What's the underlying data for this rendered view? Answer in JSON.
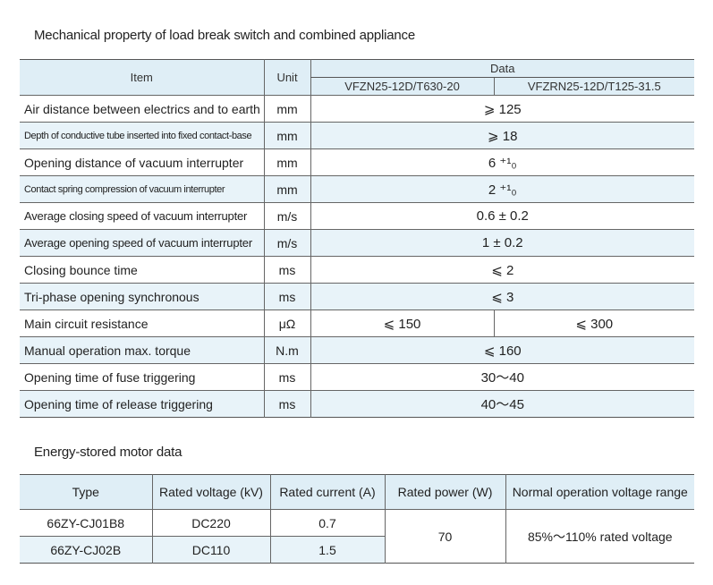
{
  "title": "Mechanical property of load break switch and combined appliance",
  "mech_table": {
    "headers": {
      "item": "Item",
      "unit": "Unit",
      "data": "Data",
      "model1": "VFZN25-12D/T630-20",
      "model2": "VFZRN25-12D/T125-31.5"
    },
    "rows": [
      {
        "item": "Air distance between electrics and to earth",
        "unit": "mm",
        "value": "⩾ 125"
      },
      {
        "item": "Depth of conductive tube inserted into fixed contact-base",
        "unit": "mm",
        "value": "⩾ 18"
      },
      {
        "item": "Opening distance of vacuum interrupter",
        "unit": "mm",
        "value": "6 ⁺¹₀"
      },
      {
        "item": "Contact spring compression of vacuum interrupter",
        "unit": "mm",
        "value": "2 ⁺¹₀"
      },
      {
        "item": "Average closing speed of vacuum interrupter",
        "unit": "m/s",
        "value": "0.6 ± 0.2"
      },
      {
        "item": "Average opening speed of vacuum interrupter",
        "unit": "m/s",
        "value": "1 ± 0.2"
      },
      {
        "item": "Closing bounce time",
        "unit": "ms",
        "value": "⩽ 2"
      },
      {
        "item": "Tri-phase opening synchronous",
        "unit": "ms",
        "value": "⩽ 3"
      },
      {
        "item": "Main circuit resistance",
        "unit": "μΩ",
        "value1": "⩽ 150",
        "value2": "⩽ 300"
      },
      {
        "item": "Manual operation max. torque",
        "unit": "N.m",
        "value": "⩽ 160"
      },
      {
        "item": "Opening time of fuse triggering",
        "unit": "ms",
        "value": "30～40"
      },
      {
        "item": "Opening time of release triggering",
        "unit": "ms",
        "value": "40～45"
      }
    ]
  },
  "motor_title": "Energy-stored motor data",
  "motor_table": {
    "headers": [
      "Type",
      "Rated voltage (kV)",
      "Rated current (A)",
      "Rated power (W)",
      "Normal operation voltage range"
    ],
    "rows": [
      {
        "type": "66ZY-CJ01B8",
        "voltage": "DC220",
        "current": "0.7"
      },
      {
        "type": "66ZY-CJ02B",
        "voltage": "DC110",
        "current": "1.5"
      }
    ],
    "power": "70",
    "range": "85%～110%  rated voltage"
  }
}
